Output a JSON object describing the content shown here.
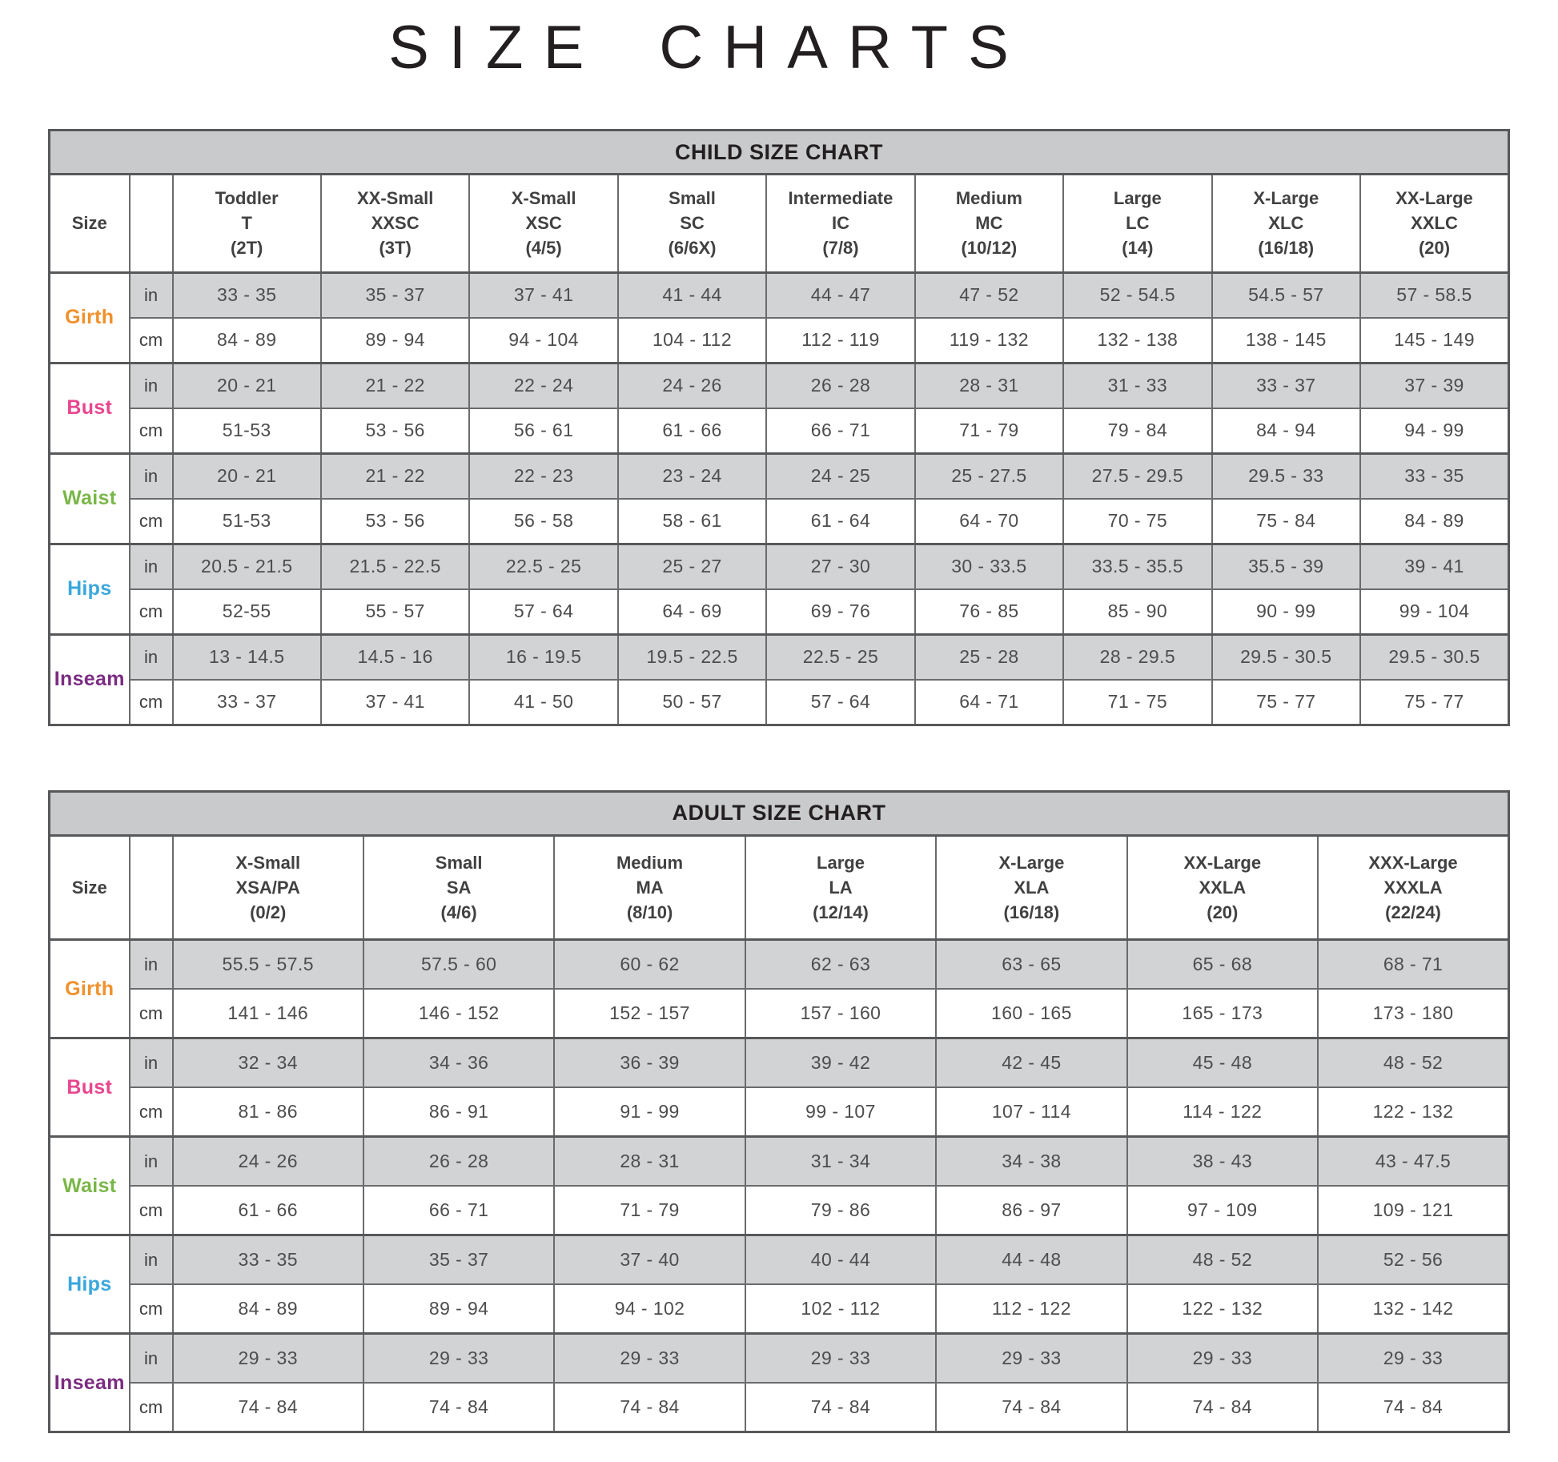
{
  "page": {
    "title": "SIZE CHARTS"
  },
  "units": {
    "inches": "in",
    "centimeters": "cm"
  },
  "charts": [
    {
      "id": "child",
      "title": "CHILD SIZE CHART",
      "size_header": "Size",
      "columns": [
        {
          "name": "Toddler",
          "code": "T",
          "range": "(2T)"
        },
        {
          "name": "XX-Small",
          "code": "XXSC",
          "range": "(3T)"
        },
        {
          "name": "X-Small",
          "code": "XSC",
          "range": "(4/5)"
        },
        {
          "name": "Small",
          "code": "SC",
          "range": "(6/6X)"
        },
        {
          "name": "Intermediate",
          "code": "IC",
          "range": "(7/8)"
        },
        {
          "name": "Medium",
          "code": "MC",
          "range": "(10/12)"
        },
        {
          "name": "Large",
          "code": "LC",
          "range": "(14)"
        },
        {
          "name": "X-Large",
          "code": "XLC",
          "range": "(16/18)"
        },
        {
          "name": "XX-Large",
          "code": "XXLC",
          "range": "(20)"
        }
      ],
      "measurements": [
        {
          "label": "Girth",
          "color": "#f0912d",
          "in": [
            "33 - 35",
            "35 - 37",
            "37 - 41",
            "41 - 44",
            "44 - 47",
            "47 - 52",
            "52 - 54.5",
            "54.5 - 57",
            "57 - 58.5"
          ],
          "cm": [
            "84 - 89",
            "89 - 94",
            "94 - 104",
            "104 - 112",
            "112 - 119",
            "119 - 132",
            "132 - 138",
            "138 - 145",
            "145 - 149"
          ]
        },
        {
          "label": "Bust",
          "color": "#e8468f",
          "in": [
            "20 - 21",
            "21 - 22",
            "22 - 24",
            "24 - 26",
            "26 - 28",
            "28 - 31",
            "31 - 33",
            "33 - 37",
            "37 - 39"
          ],
          "cm": [
            "51-53",
            "53 - 56",
            "56 - 61",
            "61 - 66",
            "66 - 71",
            "71 - 79",
            "79 - 84",
            "84 - 94",
            "94 - 99"
          ]
        },
        {
          "label": "Waist",
          "color": "#7ab648",
          "in": [
            "20 - 21",
            "21 - 22",
            "22 - 23",
            "23 - 24",
            "24 - 25",
            "25 - 27.5",
            "27.5 - 29.5",
            "29.5 - 33",
            "33 - 35"
          ],
          "cm": [
            "51-53",
            "53 - 56",
            "56 - 58",
            "58 - 61",
            "61 - 64",
            "64 - 70",
            "70 - 75",
            "75 - 84",
            "84 - 89"
          ]
        },
        {
          "label": "Hips",
          "color": "#3aa7dc",
          "in": [
            "20.5 - 21.5",
            "21.5 - 22.5",
            "22.5 - 25",
            "25 - 27",
            "27 - 30",
            "30 - 33.5",
            "33.5 - 35.5",
            "35.5 - 39",
            "39 - 41"
          ],
          "cm": [
            "52-55",
            "55 - 57",
            "57 - 64",
            "64 - 69",
            "69 - 76",
            "76 - 85",
            "85 - 90",
            "90 - 99",
            "99 - 104"
          ]
        },
        {
          "label": "Inseam",
          "color": "#7b2d82",
          "in": [
            "13 - 14.5",
            "14.5 - 16",
            "16 - 19.5",
            "19.5 - 22.5",
            "22.5 - 25",
            "25 - 28",
            "28 - 29.5",
            "29.5 - 30.5",
            "29.5 - 30.5"
          ],
          "cm": [
            "33 - 37",
            "37 - 41",
            "41 - 50",
            "50 - 57",
            "57 - 64",
            "64 - 71",
            "71 - 75",
            "75 - 77",
            "75 - 77"
          ]
        }
      ]
    },
    {
      "id": "adult",
      "title": "ADULT SIZE CHART",
      "size_header": "Size",
      "columns": [
        {
          "name": "X-Small",
          "code": "XSA/PA",
          "range": "(0/2)"
        },
        {
          "name": "Small",
          "code": "SA",
          "range": "(4/6)"
        },
        {
          "name": "Medium",
          "code": "MA",
          "range": "(8/10)"
        },
        {
          "name": "Large",
          "code": "LA",
          "range": "(12/14)"
        },
        {
          "name": "X-Large",
          "code": "XLA",
          "range": "(16/18)"
        },
        {
          "name": "XX-Large",
          "code": "XXLA",
          "range": "(20)"
        },
        {
          "name": "XXX-Large",
          "code": "XXXLA",
          "range": "(22/24)"
        }
      ],
      "measurements": [
        {
          "label": "Girth",
          "color": "#f0912d",
          "in": [
            "55.5 - 57.5",
            "57.5 - 60",
            "60 - 62",
            "62 - 63",
            "63 - 65",
            "65 - 68",
            "68 - 71"
          ],
          "cm": [
            "141 - 146",
            "146 - 152",
            "152 - 157",
            "157 - 160",
            "160 - 165",
            "165 - 173",
            "173 - 180"
          ]
        },
        {
          "label": "Bust",
          "color": "#e8468f",
          "in": [
            "32 - 34",
            "34 - 36",
            "36 - 39",
            "39 - 42",
            "42 - 45",
            "45 - 48",
            "48 - 52"
          ],
          "cm": [
            "81 - 86",
            "86 - 91",
            "91 - 99",
            "99 - 107",
            "107 - 114",
            "114 - 122",
            "122 - 132"
          ]
        },
        {
          "label": "Waist",
          "color": "#7ab648",
          "in": [
            "24 - 26",
            "26 - 28",
            "28 - 31",
            "31 - 34",
            "34 - 38",
            "38 - 43",
            "43 - 47.5"
          ],
          "cm": [
            "61 - 66",
            "66 - 71",
            "71 - 79",
            "79 - 86",
            "86 - 97",
            "97 - 109",
            "109 - 121"
          ]
        },
        {
          "label": "Hips",
          "color": "#3aa7dc",
          "in": [
            "33 - 35",
            "35 - 37",
            "37 - 40",
            "40 - 44",
            "44 - 48",
            "48 - 52",
            "52 - 56"
          ],
          "cm": [
            "84 - 89",
            "89 - 94",
            "94 - 102",
            "102 - 112",
            "112 - 122",
            "122 - 132",
            "132 - 142"
          ]
        },
        {
          "label": "Inseam",
          "color": "#7b2d82",
          "in": [
            "29 - 33",
            "29 - 33",
            "29 - 33",
            "29 - 33",
            "29 - 33",
            "29 - 33",
            "29 - 33"
          ],
          "cm": [
            "74 - 84",
            "74 - 84",
            "74 - 84",
            "74 - 84",
            "74 - 84",
            "74 - 84",
            "74 - 84"
          ]
        }
      ]
    }
  ]
}
